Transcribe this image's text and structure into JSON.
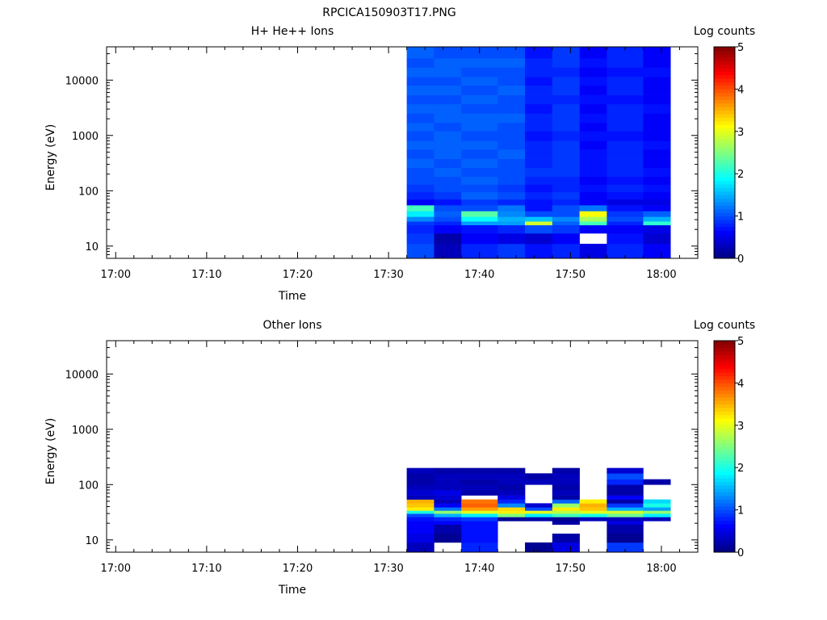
{
  "figure_title": "RPCICA150903T17.PNG",
  "colors": {
    "colormap": [
      "#00007f",
      "#0000ff",
      "#007fff",
      "#00ffff",
      "#7fff7f",
      "#ffff00",
      "#ff7f00",
      "#ff0000",
      "#7f0000"
    ],
    "axis": "#000000",
    "background": "#ffffff"
  },
  "chart_data": [
    {
      "type": "heatmap",
      "title": "H+ He++ Ions",
      "xlabel": "Time",
      "ylabel": "Energy (eV)",
      "yscale": "log",
      "xlim": [
        "16:59",
        "18:04"
      ],
      "ylim": [
        6,
        40000
      ],
      "x_ticks": [
        "17:00",
        "17:10",
        "17:20",
        "17:30",
        "17:40",
        "17:50",
        "18:00"
      ],
      "y_ticks": [
        "10",
        "100",
        "1000",
        "10000"
      ],
      "colorbar": {
        "label": "Log counts",
        "range": [
          0,
          5
        ],
        "ticks": [
          "0",
          "1",
          "2",
          "3",
          "4",
          "5"
        ]
      },
      "grid": false,
      "time_bins": [
        "17:32",
        "17:35",
        "17:38",
        "17:42",
        "17:45",
        "17:48",
        "17:51",
        "17:54",
        "17:58"
      ],
      "energy_bins": [
        6,
        11,
        17,
        24,
        28,
        34,
        43,
        55,
        70,
        95,
        130,
        180,
        260,
        380,
        560,
        800,
        1200,
        1700,
        2500,
        3700,
        5400,
        8000,
        11500,
        17000,
        25000,
        40000
      ],
      "log_counts": [
        [
          1.0,
          0.3,
          0.8,
          0.9,
          0.7,
          0.8,
          0.5,
          0.8,
          0.6
        ],
        [
          0.9,
          0.2,
          0.6,
          0.5,
          0.4,
          0.6,
          null,
          0.7,
          0.4
        ],
        [
          0.8,
          0.6,
          0.7,
          0.8,
          1.0,
          0.9,
          0.6,
          0.6,
          0.5
        ],
        [
          0.9,
          0.8,
          1.4,
          1.4,
          2.9,
          1.1,
          2.2,
          0.8,
          2.1
        ],
        [
          1.3,
          1.0,
          1.9,
          1.5,
          1.6,
          1.3,
          2.7,
          1.0,
          1.5
        ],
        [
          1.8,
          1.1,
          2.3,
          1.3,
          1.0,
          1.0,
          3.1,
          0.9,
          1.1
        ],
        [
          2.2,
          1.0,
          1.0,
          1.2,
          0.7,
          1.0,
          1.2,
          0.7,
          0.6
        ],
        [
          0.6,
          0.7,
          0.9,
          0.8,
          0.7,
          0.8,
          0.6,
          0.5,
          0.5
        ],
        [
          0.8,
          0.9,
          1.1,
          1.0,
          0.8,
          0.9,
          0.6,
          0.7,
          0.6
        ],
        [
          0.9,
          1.0,
          1.0,
          0.9,
          0.7,
          0.8,
          0.7,
          0.8,
          0.7
        ],
        [
          1.0,
          1.0,
          1.1,
          1.0,
          0.8,
          0.8,
          0.6,
          0.7,
          0.6
        ],
        [
          1.0,
          1.1,
          1.0,
          1.0,
          0.9,
          0.9,
          0.7,
          0.8,
          0.7
        ],
        [
          1.1,
          1.0,
          1.1,
          1.0,
          0.8,
          0.9,
          0.7,
          0.8,
          0.6
        ],
        [
          1.0,
          1.1,
          1.0,
          1.1,
          0.8,
          0.9,
          0.7,
          0.8,
          0.6
        ],
        [
          1.1,
          1.1,
          1.1,
          1.0,
          0.8,
          0.9,
          0.6,
          0.8,
          0.7
        ],
        [
          1.0,
          1.1,
          1.0,
          1.0,
          0.7,
          0.8,
          0.7,
          0.7,
          0.6
        ],
        [
          1.1,
          1.0,
          1.1,
          1.0,
          0.8,
          0.9,
          0.6,
          0.8,
          0.6
        ],
        [
          1.0,
          1.1,
          1.1,
          1.1,
          0.8,
          0.9,
          0.7,
          0.8,
          0.6
        ],
        [
          1.1,
          1.1,
          1.0,
          1.0,
          0.7,
          0.9,
          0.6,
          0.8,
          0.7
        ],
        [
          1.0,
          1.0,
          1.1,
          1.0,
          0.8,
          0.8,
          0.7,
          0.7,
          0.6
        ],
        [
          1.1,
          1.1,
          1.0,
          1.1,
          0.8,
          0.9,
          0.6,
          0.8,
          0.6
        ],
        [
          1.0,
          1.0,
          1.1,
          1.0,
          0.7,
          0.9,
          0.7,
          0.8,
          0.6
        ],
        [
          1.1,
          1.1,
          1.0,
          1.0,
          0.8,
          0.8,
          0.6,
          0.7,
          0.7
        ],
        [
          1.0,
          1.1,
          1.1,
          1.1,
          0.8,
          0.9,
          0.7,
          0.8,
          0.6
        ],
        [
          1.1,
          1.0,
          1.0,
          1.0,
          0.7,
          0.9,
          0.6,
          0.8,
          0.6
        ]
      ]
    },
    {
      "type": "heatmap",
      "title": "Other Ions",
      "xlabel": "Time",
      "ylabel": "Energy (eV)",
      "yscale": "log",
      "xlim": [
        "16:59",
        "18:04"
      ],
      "ylim": [
        6,
        40000
      ],
      "x_ticks": [
        "17:00",
        "17:10",
        "17:20",
        "17:30",
        "17:40",
        "17:50",
        "18:00"
      ],
      "y_ticks": [
        "10",
        "100",
        "1000",
        "10000"
      ],
      "colorbar": {
        "label": "Log counts",
        "range": [
          0,
          5
        ],
        "ticks": [
          "0",
          "1",
          "2",
          "3",
          "4",
          "5"
        ]
      },
      "grid": false,
      "time_bins": [
        "17:32",
        "17:35",
        "17:38",
        "17:42",
        "17:45",
        "17:48",
        "17:51",
        "17:54",
        "17:58"
      ],
      "energy_bins": [
        6,
        9,
        13,
        19,
        22,
        26,
        30,
        34,
        39,
        46,
        54,
        64,
        80,
        100,
        125,
        160,
        200
      ],
      "log_counts": [
        [
          0.3,
          null,
          0.8,
          null,
          0.1,
          0.5,
          null,
          0.9,
          null
        ],
        [
          0.5,
          0.1,
          0.7,
          null,
          null,
          0.2,
          null,
          0.1,
          null
        ],
        [
          0.6,
          0.2,
          0.7,
          null,
          null,
          null,
          null,
          0.2,
          null
        ],
        [
          0.6,
          0.6,
          0.7,
          null,
          null,
          0.2,
          null,
          0.5,
          null
        ],
        [
          0.7,
          0.8,
          0.9,
          0.1,
          0.2,
          0.1,
          0.3,
          0.3,
          0.3
        ],
        [
          1.0,
          1.5,
          1.8,
          2.5,
          1.8,
          2.2,
          2.0,
          2.4,
          1.8
        ],
        [
          2.0,
          2.6,
          3.0,
          3.2,
          3.0,
          2.8,
          3.0,
          2.9,
          2.6
        ],
        [
          3.2,
          1.2,
          3.6,
          3.3,
          1.0,
          3.2,
          3.4,
          1.5,
          1.4
        ],
        [
          3.4,
          0.6,
          3.9,
          1.3,
          0.4,
          2.6,
          3.5,
          0.9,
          2.0
        ],
        [
          3.5,
          0.3,
          3.8,
          0.8,
          null,
          1.1,
          3.2,
          0.2,
          1.7
        ],
        [
          0.3,
          0.4,
          null,
          0.5,
          null,
          0.2,
          null,
          0.6,
          null
        ],
        [
          0.4,
          0.5,
          0.2,
          0.3,
          null,
          0.3,
          null,
          0.2,
          null
        ],
        [
          0.3,
          0.3,
          0.3,
          0.2,
          null,
          0.2,
          null,
          0.2,
          null
        ],
        [
          0.2,
          0.3,
          0.2,
          0.3,
          0.3,
          0.3,
          null,
          0.8,
          0.2
        ],
        [
          0.2,
          0.3,
          0.3,
          0.3,
          0.2,
          0.3,
          null,
          1.0,
          null
        ],
        [
          0.3,
          0.2,
          0.2,
          0.2,
          null,
          0.2,
          null,
          0.4,
          null
        ]
      ]
    }
  ]
}
